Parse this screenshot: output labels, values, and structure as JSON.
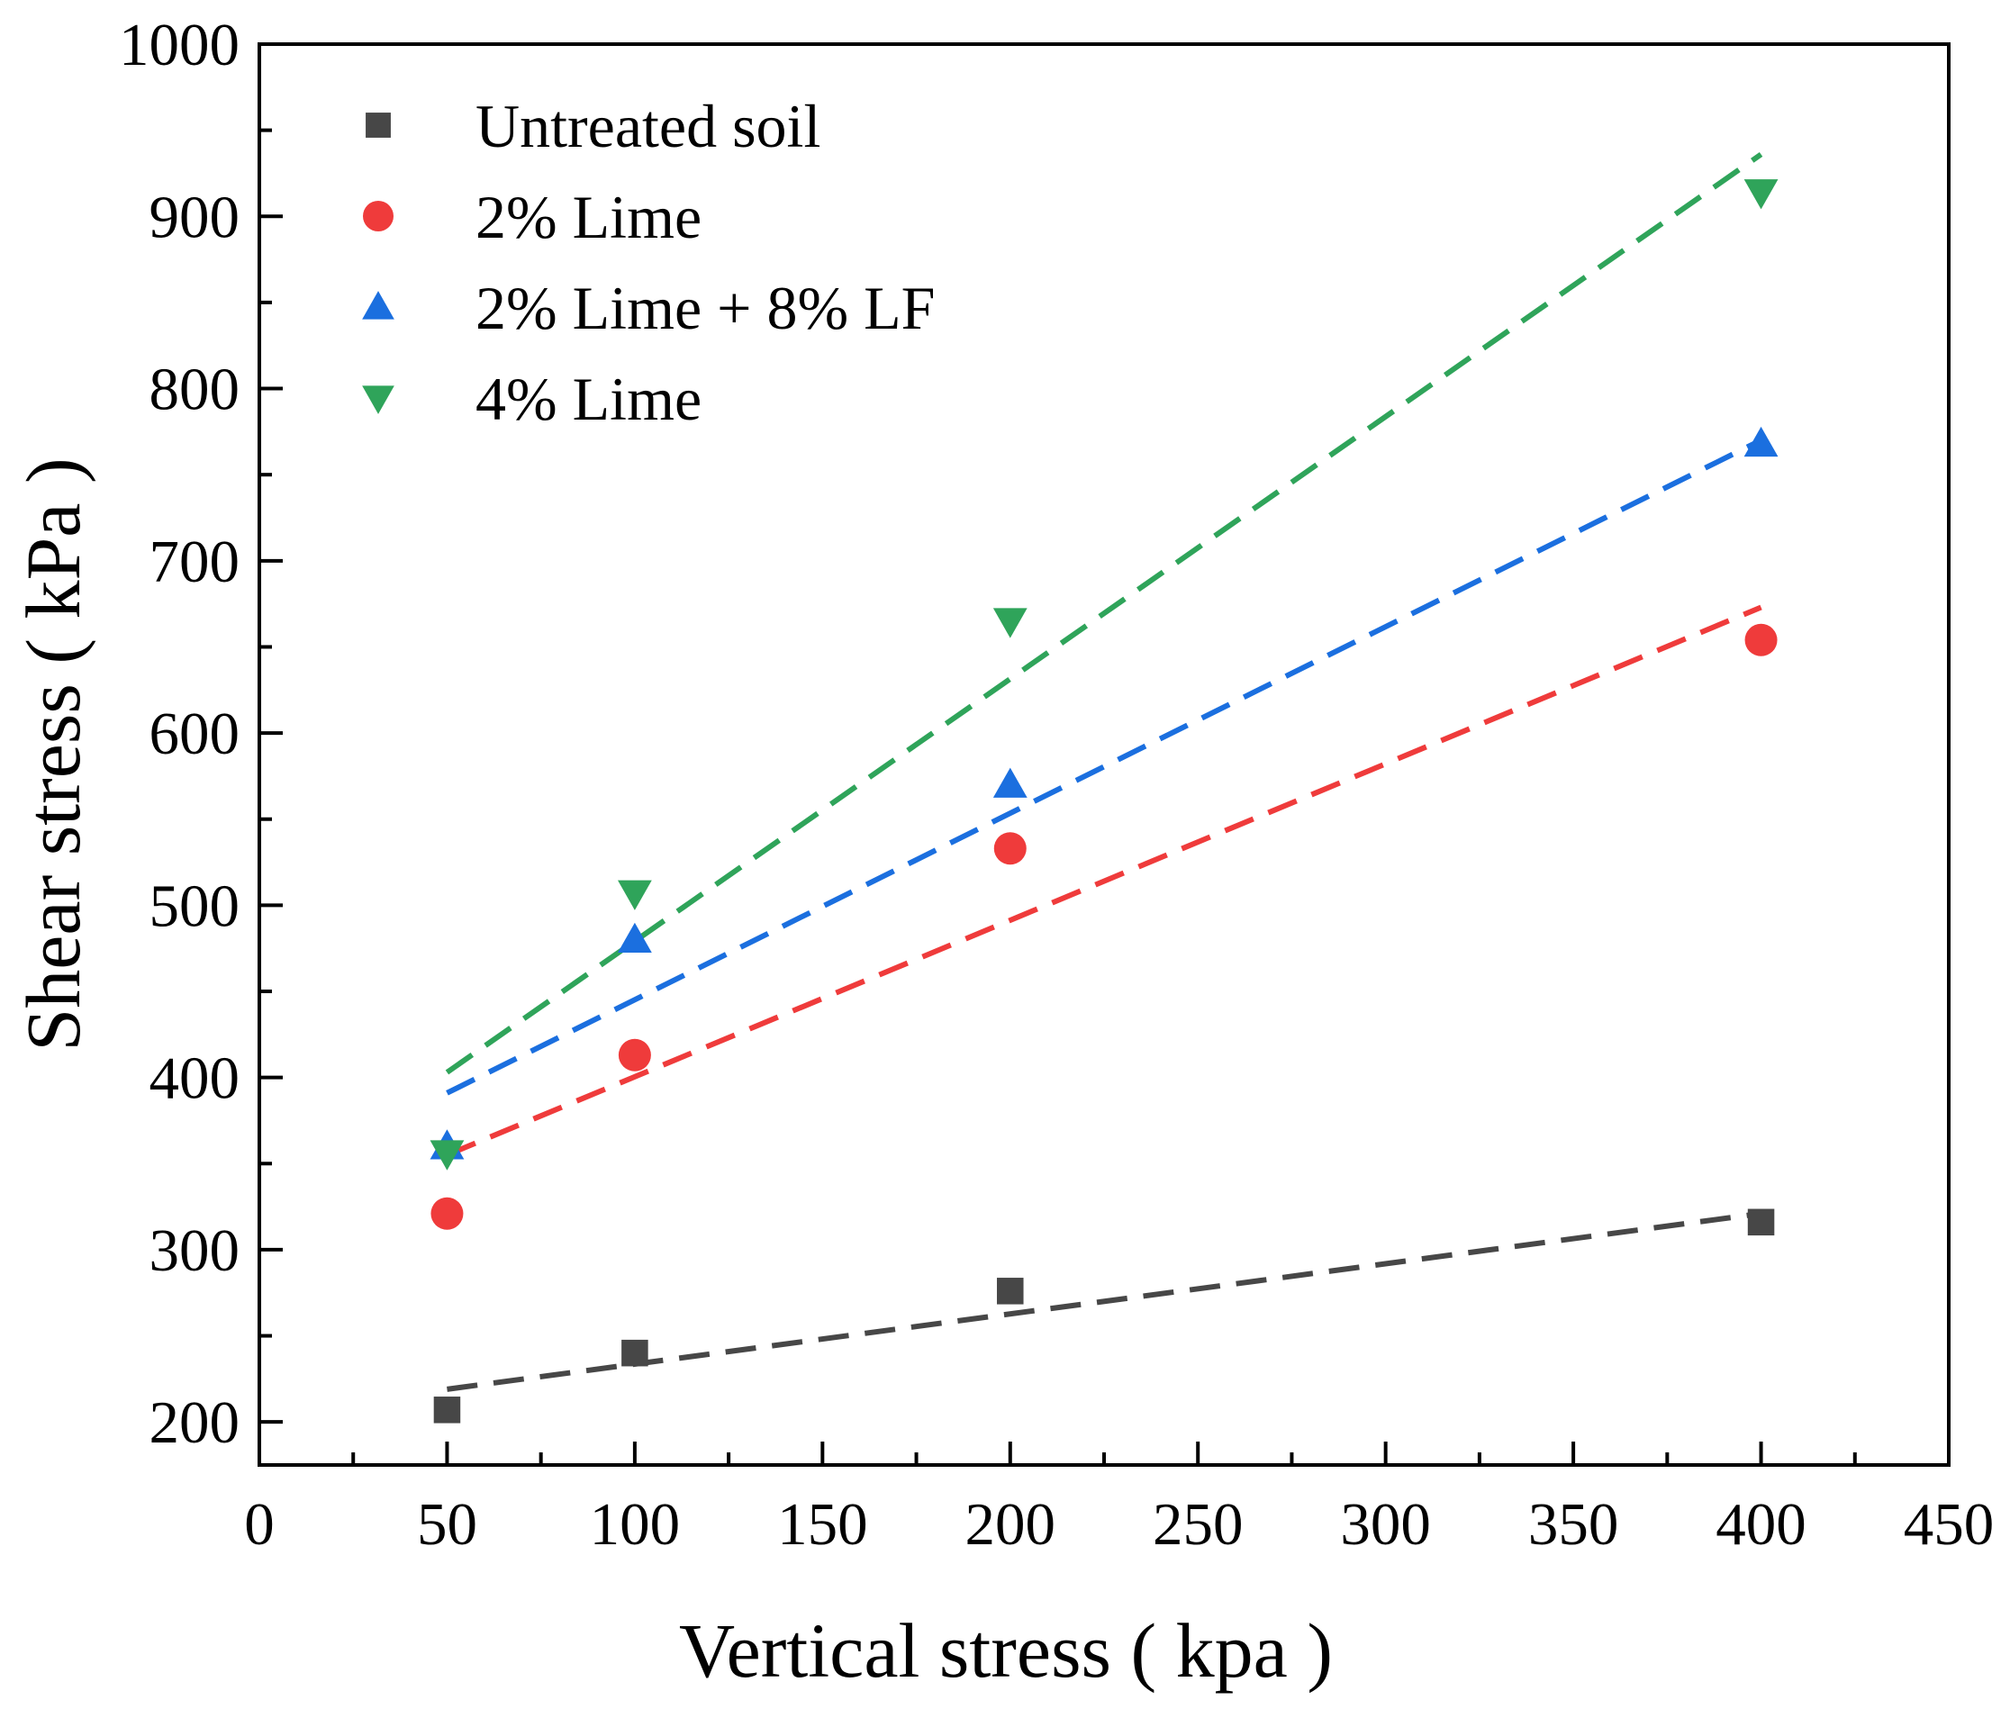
{
  "chart_data": {
    "type": "scatter",
    "title": "",
    "xlabel": "Vertical stress ( kpa )",
    "ylabel": "Shear stress ( kPa )",
    "xlim": [
      0,
      450
    ],
    "ylim": [
      175,
      1000
    ],
    "xticks": [
      0,
      50,
      100,
      150,
      200,
      250,
      300,
      350,
      400,
      450
    ],
    "yticks": [
      200,
      300,
      400,
      500,
      600,
      700,
      800,
      900,
      1000
    ],
    "grid": false,
    "legend_position": "top-left",
    "series": [
      {
        "name": "Untreated soil",
        "marker": "square",
        "color": "#474747",
        "x": [
          50,
          100,
          200,
          400
        ],
        "y": [
          207,
          240,
          276,
          316
        ],
        "fit": {
          "x": [
            50,
            400
          ],
          "y": [
            219,
            321
          ]
        }
      },
      {
        "name": "2% Lime",
        "marker": "circle",
        "color": "#ef3b3b",
        "x": [
          50,
          100,
          200,
          400
        ],
        "y": [
          321,
          413,
          533,
          654
        ],
        "fit": {
          "x": [
            50,
            400
          ],
          "y": [
            355,
            673
          ]
        }
      },
      {
        "name": "2% Lime + 8% LF",
        "marker": "triangle-up",
        "color": "#1b6fdf",
        "x": [
          50,
          100,
          200,
          400
        ],
        "y": [
          360,
          480,
          570,
          768
        ],
        "fit": {
          "x": [
            50,
            400
          ],
          "y": [
            391,
            770
          ]
        }
      },
      {
        "name": "4% Lime",
        "marker": "triangle-down",
        "color": "#2fa45a",
        "x": [
          50,
          100,
          200,
          400
        ],
        "y": [
          356,
          507,
          665,
          914
        ],
        "fit": {
          "x": [
            50,
            400
          ],
          "y": [
            403,
            936
          ]
        }
      }
    ]
  }
}
